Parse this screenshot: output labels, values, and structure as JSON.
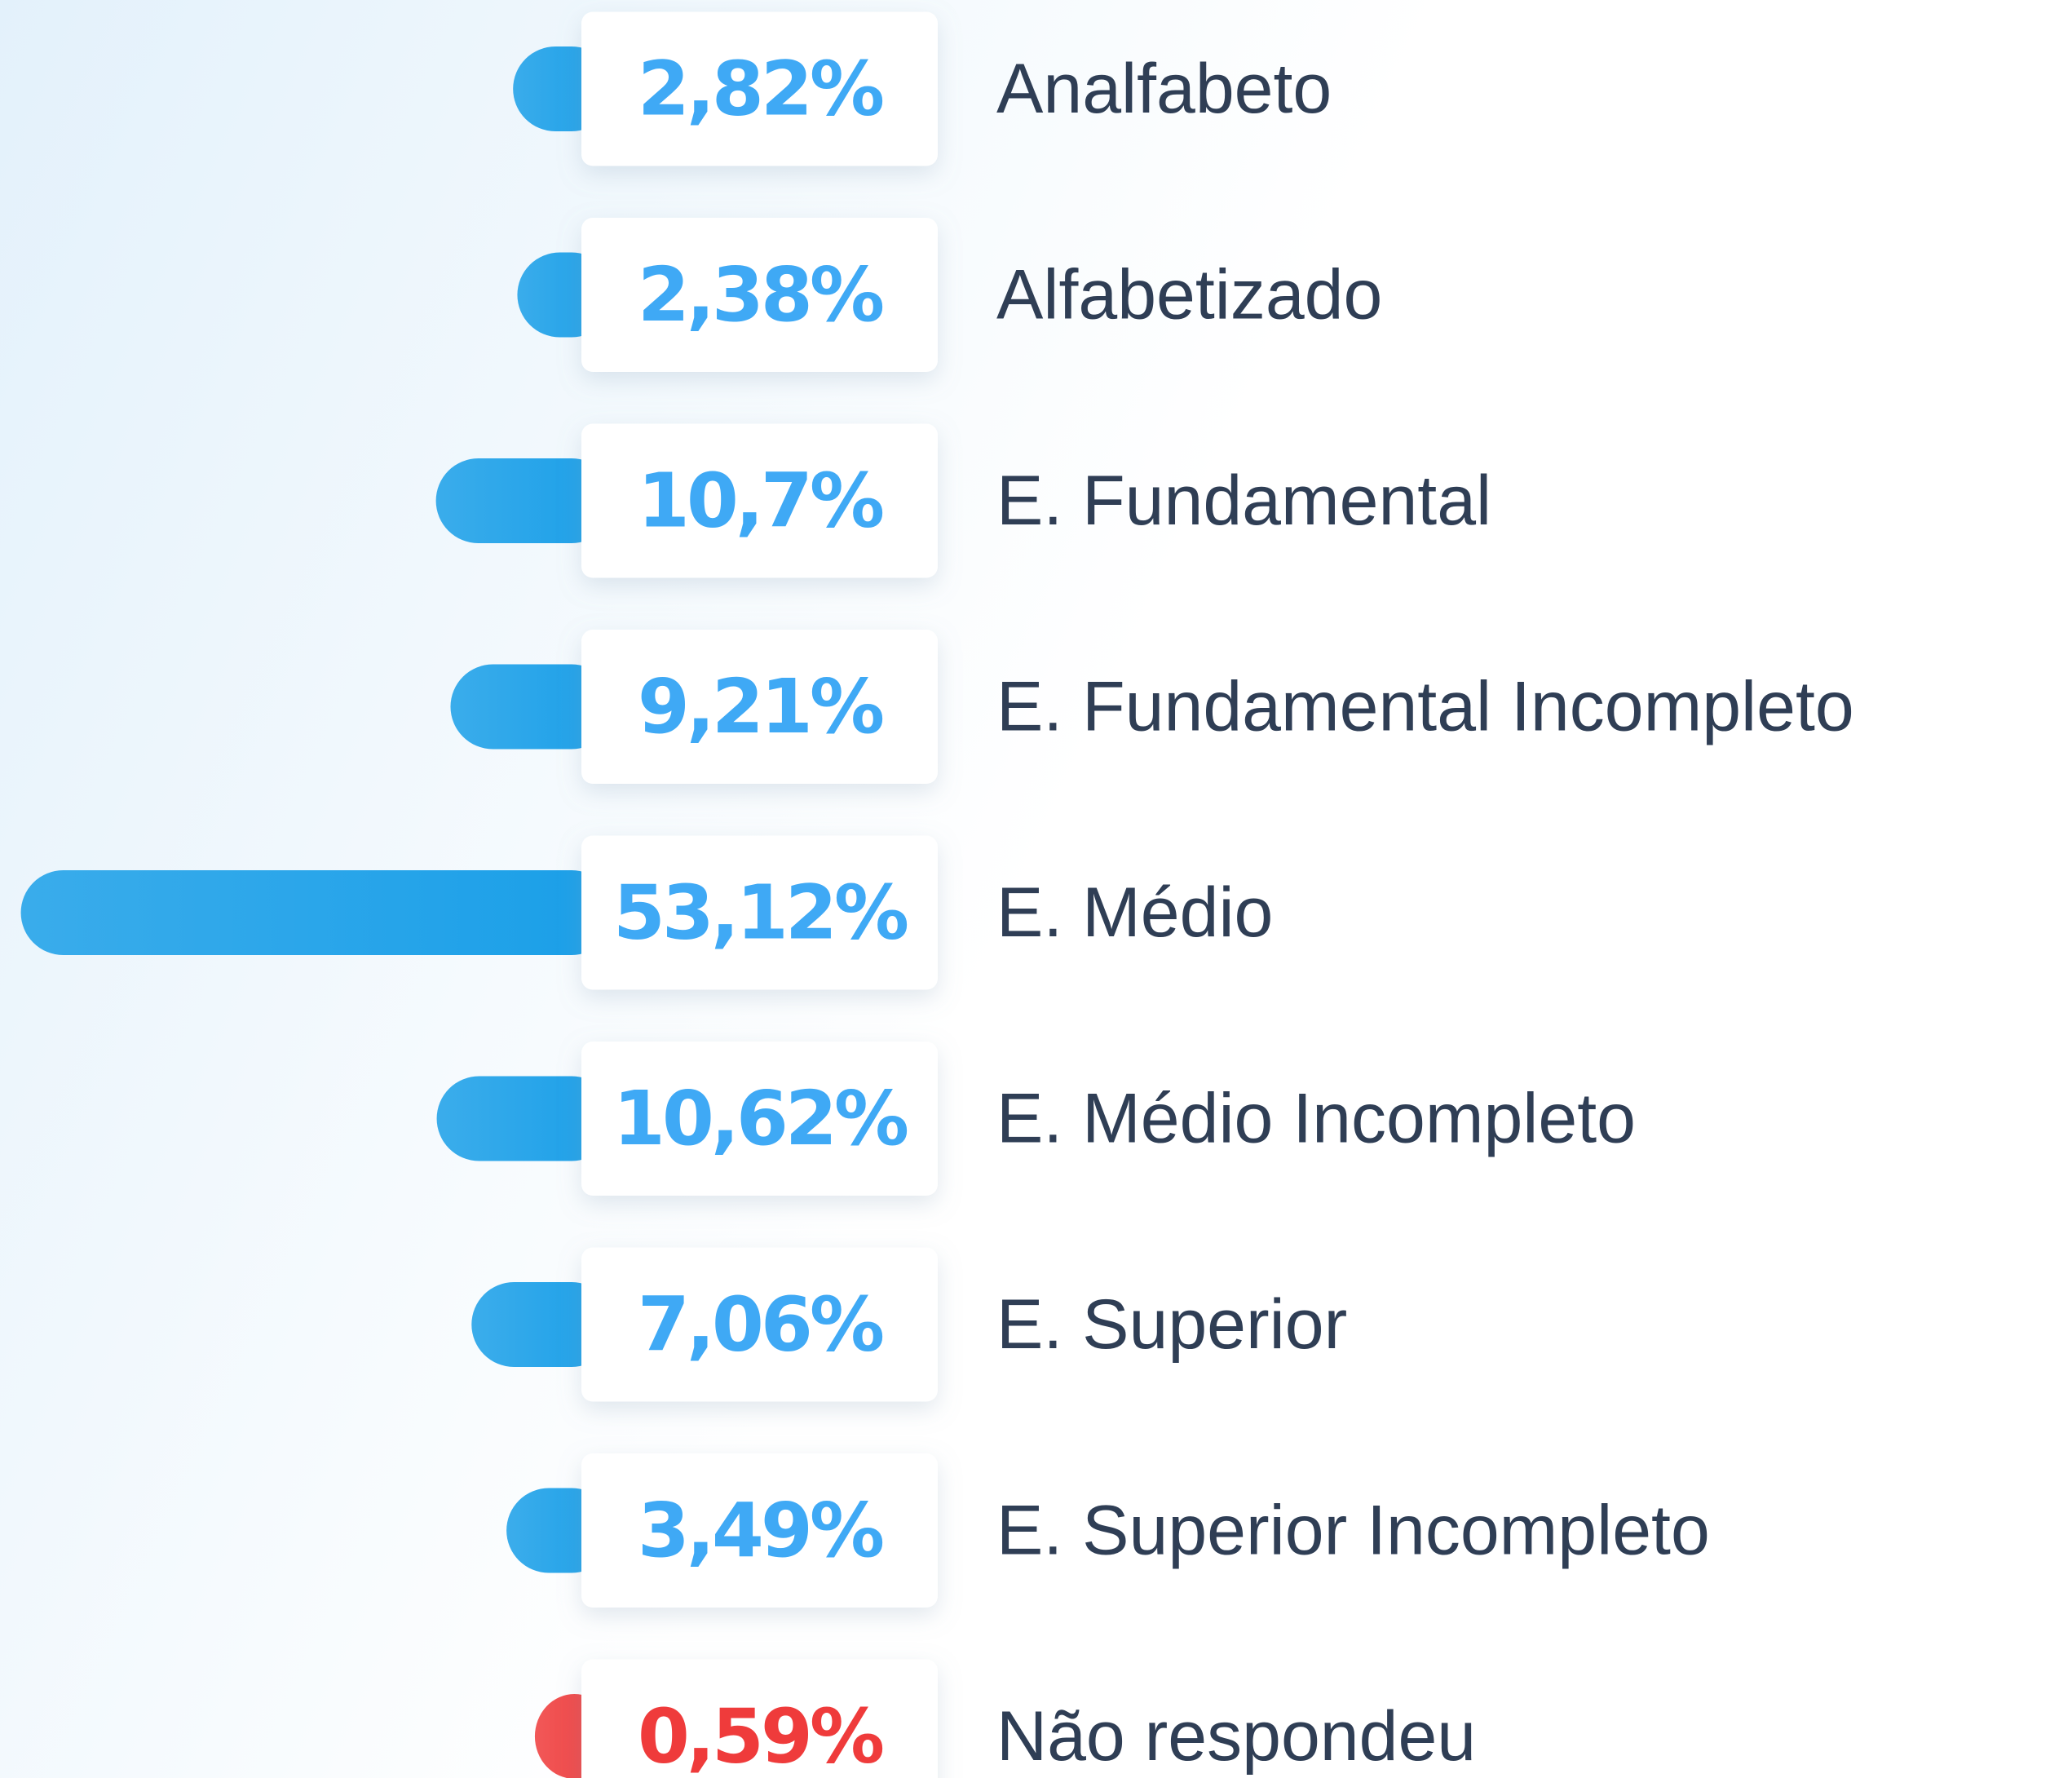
{
  "chart_data": {
    "type": "bar",
    "orientation": "horizontal",
    "categories": [
      "Analfabeto",
      "Alfabetizado",
      "E. Fundamental",
      "E. Fundamental Incompleto",
      "E. Médio",
      "E. Médio Incompleto",
      "E. Superior",
      "E. Superior Incompleto",
      "Não respondeu"
    ],
    "values": [
      2.82,
      2.38,
      10.7,
      9.21,
      53.12,
      10.62,
      7.06,
      3.49,
      0.59
    ],
    "value_labels": [
      "2,82%",
      "2,38%",
      "10,7%",
      "9,21%",
      "53,12%",
      "10,62%",
      "7,06%",
      "3,49%",
      "0,59%"
    ],
    "colors": [
      "#1a9fe8",
      "#1a9fe8",
      "#1a9fe8",
      "#1a9fe8",
      "#1a9fe8",
      "#1a9fe8",
      "#1a9fe8",
      "#1a9fe8",
      "#ef3b3b"
    ]
  }
}
